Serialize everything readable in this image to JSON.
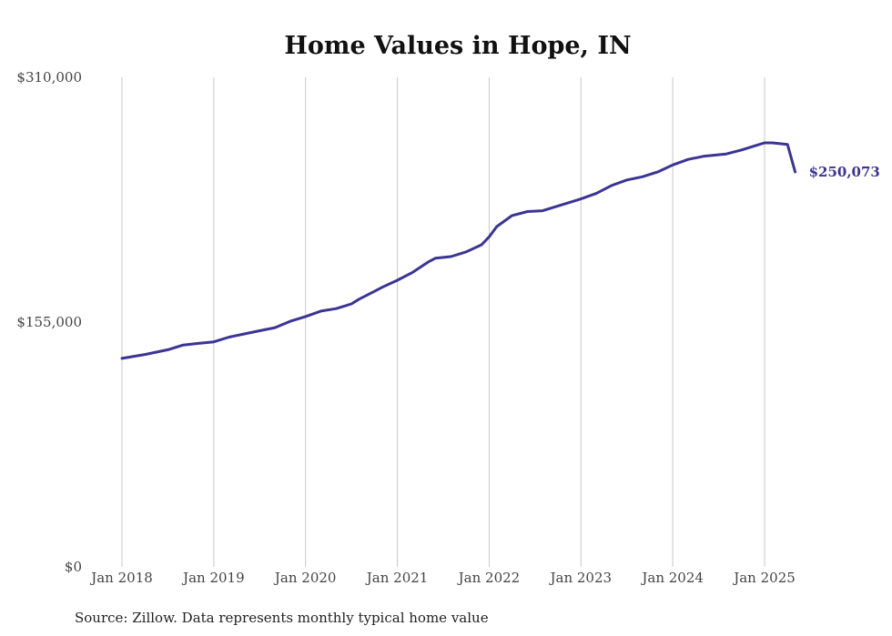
{
  "chart_data": {
    "type": "line",
    "title": "Home Values in Hope, IN",
    "xlabel": "",
    "ylabel": "",
    "ylim": [
      0,
      310000
    ],
    "y_ticks": [
      {
        "value": 0,
        "label": "$0"
      },
      {
        "value": 155000,
        "label": "$155,000"
      },
      {
        "value": 310000,
        "label": "$310,000"
      }
    ],
    "x_ticks": [
      {
        "value": 2018.0,
        "label": "Jan 2018"
      },
      {
        "value": 2019.0,
        "label": "Jan 2019"
      },
      {
        "value": 2020.0,
        "label": "Jan 2020"
      },
      {
        "value": 2021.0,
        "label": "Jan 2021"
      },
      {
        "value": 2022.0,
        "label": "Jan 2022"
      },
      {
        "value": 2023.0,
        "label": "Jan 2023"
      },
      {
        "value": 2024.0,
        "label": "Jan 2024"
      },
      {
        "value": 2025.0,
        "label": "Jan 2025"
      }
    ],
    "xlim": [
      2018.0,
      2025.333
    ],
    "grid": "vertical",
    "series": [
      {
        "color": "#3b3494",
        "end_label": "$250,073",
        "x": [
          2018.0,
          2018.25,
          2018.5,
          2018.667,
          2018.833,
          2019.0,
          2019.167,
          2019.333,
          2019.5,
          2019.667,
          2019.833,
          2020.0,
          2020.167,
          2020.333,
          2020.5,
          2020.583,
          2020.75,
          2020.833,
          2021.0,
          2021.167,
          2021.333,
          2021.417,
          2021.583,
          2021.75,
          2021.917,
          2022.0,
          2022.083,
          2022.25,
          2022.417,
          2022.583,
          2022.833,
          2023.0,
          2023.167,
          2023.333,
          2023.5,
          2023.667,
          2023.833,
          2024.0,
          2024.167,
          2024.333,
          2024.583,
          2024.75,
          2024.917,
          2025.0,
          2025.083,
          2025.25,
          2025.333
        ],
        "values": [
          132000,
          134500,
          137500,
          140500,
          141500,
          142500,
          145500,
          147500,
          149500,
          151500,
          155500,
          158500,
          162000,
          163500,
          166500,
          169500,
          174500,
          177000,
          181500,
          186500,
          193000,
          195500,
          196500,
          199500,
          204000,
          209000,
          215500,
          222500,
          225000,
          225500,
          230000,
          233000,
          236500,
          241500,
          245000,
          247000,
          250000,
          254500,
          258000,
          260000,
          261500,
          264000,
          267000,
          268500,
          268500,
          267500,
          250073
        ]
      }
    ],
    "source_note": "Source: Zillow. Data represents monthly typical home value"
  }
}
